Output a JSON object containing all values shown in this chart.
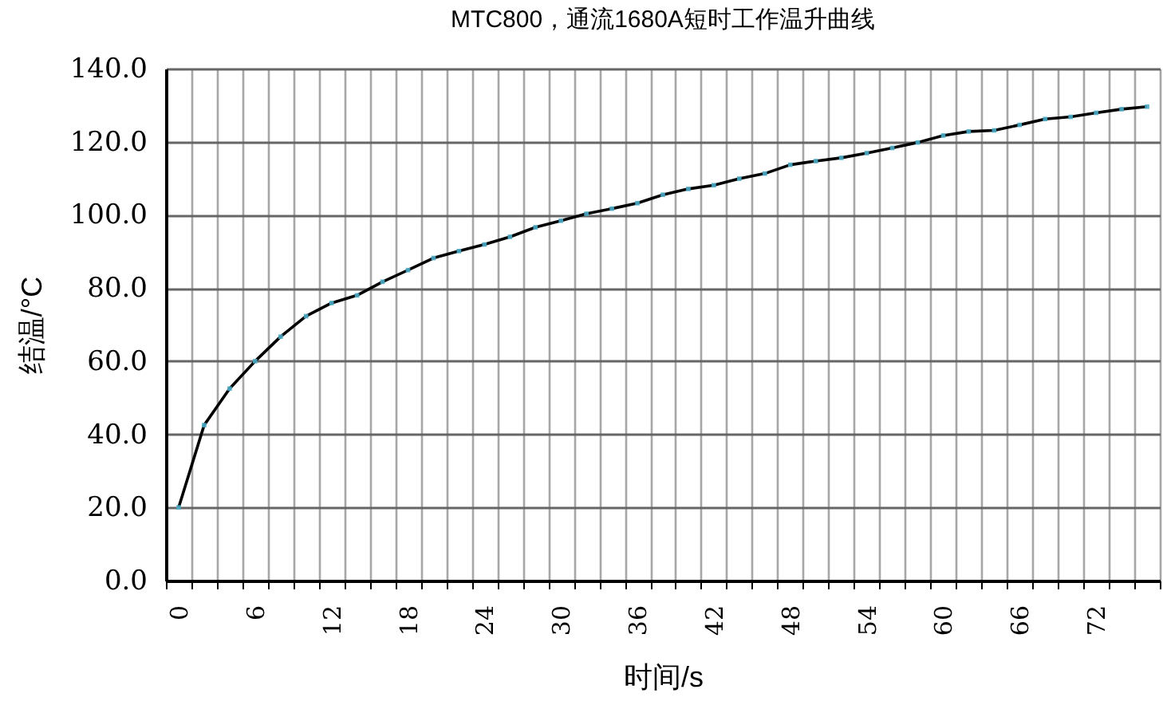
{
  "chart_data": {
    "type": "line",
    "title": "MTC800，通流1680A短时工作温升曲线",
    "xlabel": "时间/s",
    "ylabel": "结温/°C",
    "categories": [
      "0",
      null,
      null,
      "6",
      null,
      null,
      "12",
      null,
      null,
      "18",
      null,
      null,
      "24",
      null,
      null,
      "30",
      null,
      null,
      "36",
      null,
      null,
      "42",
      null,
      null,
      "48",
      null,
      null,
      "54",
      null,
      null,
      "60",
      null,
      null,
      "66",
      null,
      null,
      "72",
      null,
      null
    ],
    "series": [
      {
        "color": "#000000",
        "values": [
          20,
          42.5,
          52.5,
          60,
          66.7,
          72.3,
          75.9,
          78,
          81.7,
          84.9,
          88.2,
          90.1,
          91.9,
          94,
          96.6,
          98.4,
          100.3,
          101.7,
          103.2,
          105.5,
          107.1,
          108.1,
          109.9,
          111.3,
          113.7,
          114.7,
          115.6,
          116.9,
          118.3,
          119.8,
          121.7,
          122.8,
          123.1,
          124.6,
          126.2,
          126.8,
          127.9,
          128.9,
          129.6
        ]
      }
    ],
    "ylim": [
      0,
      140
    ],
    "yticks": [
      {
        "value": 0,
        "label": "0.0"
      },
      {
        "value": 20,
        "label": "20.0"
      },
      {
        "value": 40,
        "label": "40.0"
      },
      {
        "value": 60,
        "label": "60.0"
      },
      {
        "value": 80,
        "label": "80.0"
      },
      {
        "value": 100,
        "label": "100.0"
      },
      {
        "value": 120,
        "label": "120.0"
      },
      {
        "value": 140,
        "label": "140.0"
      }
    ],
    "grid": true,
    "legend": false,
    "marker": "square",
    "line_style": "solid"
  }
}
